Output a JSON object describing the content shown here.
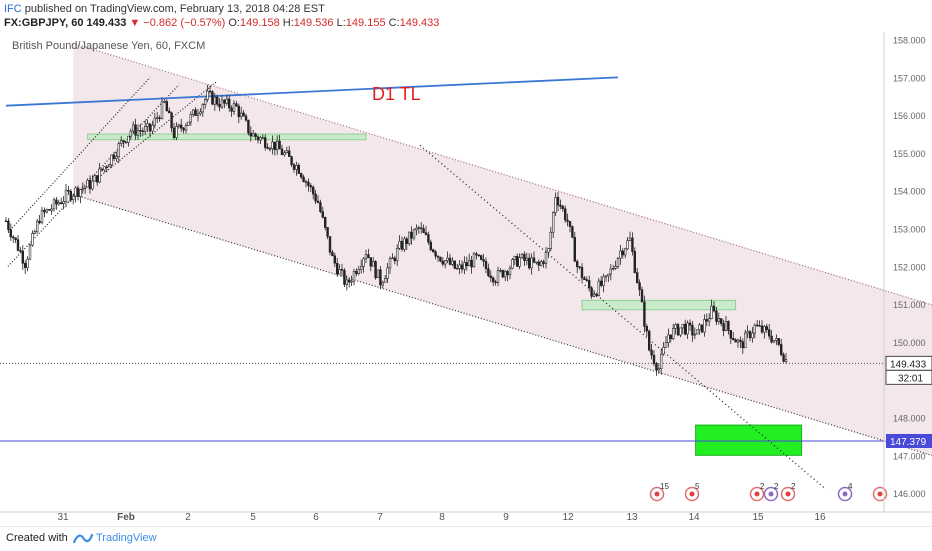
{
  "header": {
    "author": "IFC",
    "published": " published on TradingView.com, February 13, 2018 04:28 EST",
    "symbol": "FX:GBPJPY, 60",
    "last": "149.433",
    "change": "▼ −0.862 (−0.57%)",
    "o_label": "O:",
    "o_value": "149.158",
    "h_label": "H:",
    "h_value": "149.536",
    "l_label": "L:",
    "l_value": "149.155",
    "c_label": "C:",
    "c_value": "149.433"
  },
  "footer": {
    "created_with": "Created with",
    "brand": "TradingView"
  },
  "colors": {
    "channel_fill": "#f3e4ea",
    "blue_trendline": "#3a78d4",
    "support_zone": "#c9ebcb",
    "target_box": "#22ee22",
    "level_line": "#4a4ad8",
    "annotation": "#e02020"
  },
  "chart_data": {
    "type": "candlestick",
    "title": "British Pound/Japanese Yen, 60, FXCM",
    "annotation": "D1 TL",
    "ylim": [
      145.5,
      158.2
    ],
    "y_ticks": [
      "158.000",
      "157.000",
      "156.000",
      "155.000",
      "154.000",
      "153.000",
      "152.000",
      "151.000",
      "150.000",
      "149.000",
      "148.000",
      "147.000",
      "146.000"
    ],
    "x_ticks": [
      "31",
      "Feb",
      "2",
      "5",
      "6",
      "7",
      "8",
      "9",
      "12",
      "13",
      "14",
      "15",
      "16"
    ],
    "current_price": "149.433",
    "countdown": "32:01",
    "level_price": "147.379",
    "path": [
      [
        0,
        153.2
      ],
      [
        8,
        152.1
      ],
      [
        14,
        153.3
      ],
      [
        26,
        153.9
      ],
      [
        36,
        154.2
      ],
      [
        44,
        154.9
      ],
      [
        52,
        155.6
      ],
      [
        60,
        155.6
      ],
      [
        66,
        156.3
      ],
      [
        70,
        155.5
      ],
      [
        78,
        156.0
      ],
      [
        84,
        156.5
      ],
      [
        90,
        156.3
      ],
      [
        96,
        156.2
      ],
      [
        102,
        155.5
      ],
      [
        112,
        155.2
      ],
      [
        122,
        154.6
      ],
      [
        130,
        153.7
      ],
      [
        136,
        152.2
      ],
      [
        142,
        151.5
      ],
      [
        150,
        152.4
      ],
      [
        156,
        151.6
      ],
      [
        164,
        152.5
      ],
      [
        172,
        153.0
      ],
      [
        180,
        152.3
      ],
      [
        188,
        151.9
      ],
      [
        196,
        152.2
      ],
      [
        204,
        151.7
      ],
      [
        214,
        152.2
      ],
      [
        222,
        152.0
      ],
      [
        226,
        152.4
      ],
      [
        229,
        153.9
      ],
      [
        234,
        153.2
      ],
      [
        238,
        152.0
      ],
      [
        244,
        151.3
      ],
      [
        250,
        151.6
      ],
      [
        256,
        152.4
      ],
      [
        260,
        152.7
      ],
      [
        264,
        151.3
      ],
      [
        268,
        149.8
      ],
      [
        272,
        149.3
      ],
      [
        276,
        150.2
      ],
      [
        282,
        150.4
      ],
      [
        288,
        150.2
      ],
      [
        294,
        150.8
      ],
      [
        300,
        150.4
      ],
      [
        306,
        149.9
      ],
      [
        312,
        150.4
      ],
      [
        318,
        150.2
      ],
      [
        322,
        149.9
      ],
      [
        326,
        149.4
      ]
    ],
    "support_zones": [
      {
        "x_from": 34,
        "x_to": 150,
        "y_low": 155.35,
        "y_high": 155.5
      },
      {
        "x_from": 240,
        "x_to": 304,
        "y_low": 150.85,
        "y_high": 151.1
      }
    ],
    "target_zone": {
      "x_from": 344,
      "x_to": 396,
      "y_low": 147.0,
      "y_high": 147.8
    },
    "channel": {
      "upper": [
        [
          28,
          157.9
        ],
        [
          396,
          150.8
        ]
      ],
      "lower": [
        [
          28,
          153.9
        ],
        [
          396,
          146.8
        ]
      ]
    },
    "event_markers": [
      {
        "label": "15",
        "x": 328
      },
      {
        "label": "5",
        "x": 346
      },
      {
        "label": "2",
        "x": 380
      },
      {
        "label": "2",
        "x": 392
      },
      {
        "label": "2",
        "x": 412
      },
      {
        "label": "4",
        "x": 422
      },
      {
        "label": "",
        "x": 440
      }
    ]
  }
}
